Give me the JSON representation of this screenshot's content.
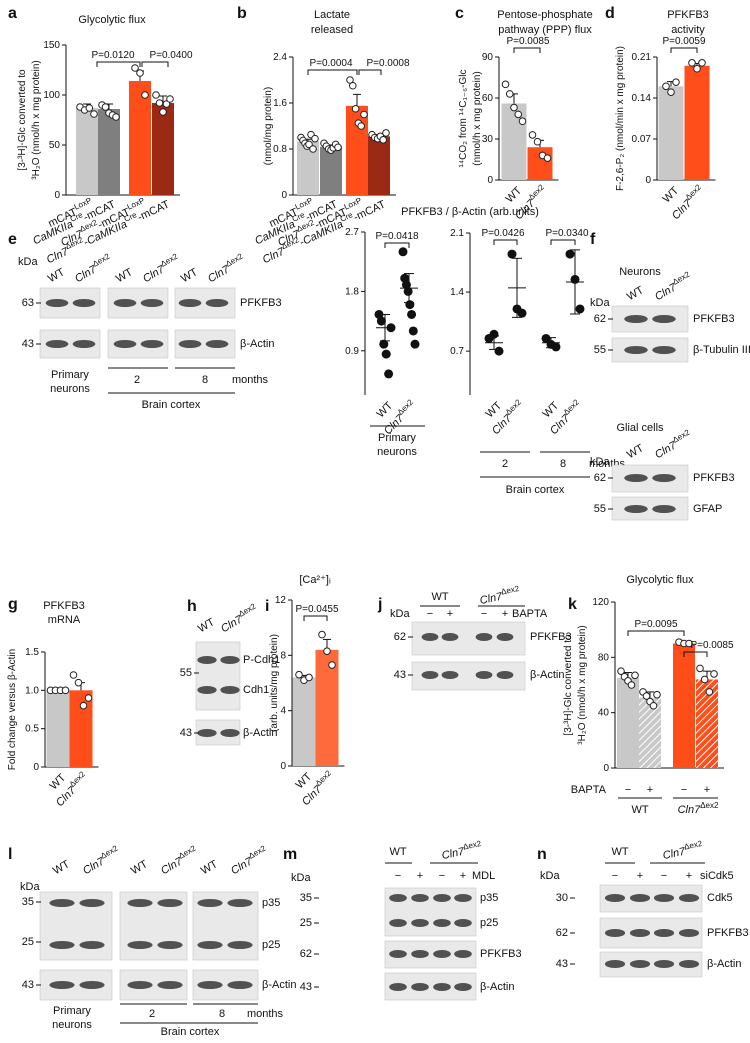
{
  "chart_data": [
    {
      "panel": "a",
      "type": "bar",
      "title": [
        "Glycolytic flux"
      ],
      "ylabel": [
        "[3-³H]-Glc converted to",
        "³H₂O (nmol/h x mg protein)"
      ],
      "categories": [
        "mCATLoxP",
        "CaMKIIaCre-mCAT",
        "Cln7Δex2-mCATLoxP",
        "Cln7Δex2-CaMKIIaCre-mCAT"
      ],
      "colors": [
        "#c8c8c8",
        "#7f7f7f",
        "#ff4e1a",
        "#9b2a14"
      ],
      "values": [
        87,
        86,
        114,
        92
      ],
      "errors": [
        4,
        5,
        10,
        7
      ],
      "points": [
        [
          88,
          85,
          87,
          81
        ],
        [
          90,
          88,
          82,
          80,
          78
        ],
        [
          127,
          122,
          100
        ],
        [
          100,
          92,
          83,
          91,
          96
        ]
      ],
      "ylim": [
        0,
        150
      ],
      "yticks": [
        0,
        50,
        100,
        150
      ],
      "annotations": [
        "P=0.0120",
        "P=0.0400"
      ]
    },
    {
      "panel": "b",
      "type": "bar",
      "title": [
        "Lactate",
        "released"
      ],
      "ylabel": [
        "(nmol/mg protein)"
      ],
      "categories": [
        "mCATLoxP",
        "CaMKIIaCre-mCAT",
        "Cln7Δex2-mCATLoxP",
        "Cln7Δex2-CaMKIIaCre-mCAT"
      ],
      "colors": [
        "#c8c8c8",
        "#7f7f7f",
        "#ff4e1a",
        "#9b2a14"
      ],
      "values": [
        0.93,
        0.84,
        1.55,
        1.02
      ],
      "errors": [
        0.04,
        0.03,
        0.2,
        0.03
      ],
      "points": [
        [
          1.0,
          0.95,
          0.9,
          0.85,
          0.88,
          1.05,
          0.8,
          0.98
        ],
        [
          0.9,
          0.85,
          0.8,
          0.78,
          0.82,
          0.88,
          0.83
        ],
        [
          2.0,
          1.9,
          1.5,
          1.25,
          1.2,
          1.4
        ],
        [
          1.05,
          1.0,
          0.98,
          1.02,
          0.96,
          1.08
        ]
      ],
      "ylim": [
        0,
        2.4
      ],
      "yticks": [
        0,
        0.8,
        1.6,
        2.4
      ],
      "annotations": [
        "P=0.0004",
        "P=0.0008"
      ]
    },
    {
      "panel": "c",
      "type": "bar",
      "title": [
        "Pentose-phosphate",
        "pathway (PPP) flux"
      ],
      "ylabel": [
        "¹⁴CO₂ from ¹⁴C₁₋₆-Glc",
        "(nmol/h x mg protein)"
      ],
      "categories": [
        "WT",
        "Cln7Δex2"
      ],
      "colors": [
        "#c8c8c8",
        "#ff4e1a"
      ],
      "values": [
        56,
        24
      ],
      "errors": [
        7,
        5
      ],
      "points": [
        [
          70,
          63,
          53,
          48,
          43
        ],
        [
          33,
          28,
          18,
          16
        ]
      ],
      "ylim": [
        0,
        90
      ],
      "yticks": [
        0,
        30,
        60,
        90
      ],
      "annotations": [
        "P=0.0085"
      ]
    },
    {
      "panel": "d",
      "type": "bar",
      "title": [
        "PFKFB3",
        "activity"
      ],
      "ylabel": [
        "F-2,6-P₂ (nmol/min x mg protein)"
      ],
      "categories": [
        "WT",
        "Cln7Δex2"
      ],
      "colors": [
        "#c8c8c8",
        "#ff4e1a"
      ],
      "values": [
        0.16,
        0.195
      ],
      "errors": [
        0.008,
        0.004
      ],
      "points": [
        [
          0.16,
          0.15,
          0.167
        ],
        [
          0.2,
          0.19,
          0.2
        ]
      ],
      "ylim": [
        0,
        0.21
      ],
      "yticks": [
        0,
        0.07,
        0.14,
        0.21
      ],
      "annotations": [
        "P=0.0059"
      ]
    },
    {
      "type": "scatter",
      "title": [
        "PFKFB3 / β-Actin (arb.units)"
      ],
      "categories": [
        "WT",
        "Cln7Δex2"
      ],
      "points": [
        [
          1.45,
          1.35,
          1.0,
          0.85,
          0.55,
          1.25
        ],
        [
          2.4,
          2.0,
          1.9,
          1.8,
          1.6,
          1.45,
          1.2,
          1.0
        ]
      ],
      "means": [
        1.25,
        1.85
      ],
      "errors": [
        0.2,
        0.22
      ],
      "ylim": [
        0.23,
        2.7
      ],
      "yticks": [
        0.9,
        1.8,
        2.7
      ],
      "annotations": [
        "P=0.0418"
      ],
      "footer": [
        "Primary",
        "neurons"
      ]
    },
    {
      "type": "scatter",
      "categories": [
        "WT",
        "Cln7Δex2",
        "WT",
        "Cln7Δex2"
      ],
      "points": [
        [
          0.85,
          0.9,
          0.7
        ],
        [
          1.85,
          1.2,
          1.15
        ],
        [
          0.85,
          0.78,
          0.75
        ],
        [
          1.85,
          1.55,
          1.2
        ]
      ],
      "means": [
        0.8,
        1.45,
        0.8,
        1.52
      ],
      "errors": [
        0.08,
        0.35,
        0.06,
        0.38
      ],
      "ylim": [
        0.18,
        2.1
      ],
      "yticks": [
        0.7,
        1.4,
        2.1
      ],
      "annotations": [
        "P=0.0426",
        "P=0.0340"
      ],
      "footer": [
        "2",
        "8",
        "months",
        "Brain cortex"
      ]
    },
    {
      "panel": "g",
      "type": "bar",
      "title": [
        "PFKFB3",
        "mRNA"
      ],
      "ylabel": [
        "Fold change versus β-Actin"
      ],
      "categories": [
        "WT",
        "Cln7Δex2"
      ],
      "colors": [
        "#c8c8c8",
        "#ff4e1a"
      ],
      "values": [
        1,
        1
      ],
      "errors": [
        0.01,
        0.1
      ],
      "points": [
        [
          1,
          1,
          1,
          1
        ],
        [
          1.2,
          1.1,
          0.8,
          0.9
        ]
      ],
      "ylim": [
        0,
        1.5
      ],
      "yticks": [
        0,
        0.5,
        {
          "value": 1,
          "label": "1.0"
        },
        1.5
      ],
      "annotations": []
    },
    {
      "panel": "i",
      "type": "bar",
      "title": [
        "[Ca²⁺]ᵢ"
      ],
      "ylabel": [
        "(arb. units/mg protein)"
      ],
      "categories": [
        "WT",
        "Cln7Δex2"
      ],
      "colors": [
        "#c8c8c8",
        "#ff6a3d"
      ],
      "values": [
        6.4,
        8.4
      ],
      "errors": [
        0.15,
        0.75
      ],
      "points": [
        [
          6.6,
          6.2,
          6.4
        ],
        [
          9.5,
          8.3,
          7.3
        ]
      ],
      "ylim": [
        0,
        12
      ],
      "yticks": [
        0,
        4,
        8,
        12
      ],
      "annotations": [
        "P=0.0455"
      ]
    },
    {
      "panel": "k",
      "type": "bar",
      "title": [
        "Glycolytic flux"
      ],
      "ylabel": [
        "[3-³H]-Glc converted to",
        "³H₂O (nmol/h x mg protein)"
      ],
      "treatment": "BAPTA",
      "signs": [
        "−",
        "+",
        "−",
        "+"
      ],
      "groups": [
        "WT",
        "Cln7Δex2"
      ],
      "colors": [
        "#c8c8c8",
        "#c8c8c8",
        "#ff4e1a",
        "#ff4e1a"
      ],
      "hatched": [
        false,
        true,
        false,
        true
      ],
      "values": [
        65,
        51,
        90,
        64
      ],
      "errors": [
        4,
        4,
        1,
        6
      ],
      "points": [
        [
          70,
          66,
          63,
          60,
          67
        ],
        [
          55,
          52,
          48,
          45,
          53
        ],
        [
          91,
          90,
          90
        ],
        [
          72,
          64,
          55,
          68
        ]
      ],
      "ylim": [
        0,
        120
      ],
      "yticks": [
        0,
        40,
        80,
        120
      ],
      "annotations": [
        "P=0.0095",
        "P=0.0085"
      ]
    }
  ],
  "blots": [
    {
      "panel": "e",
      "kda": "kDa",
      "lanes": [
        "WT",
        "Cln7Δex2",
        "WT",
        "Cln7Δex2",
        "WT",
        "Cln7Δex2"
      ],
      "strips": [
        {
          "markers": [
            "63"
          ],
          "labels": [
            "PFKFB3"
          ]
        },
        {
          "markers": [
            "43"
          ],
          "labels": [
            "β-Actin"
          ]
        }
      ],
      "footer": [
        "Primary",
        "neurons",
        "2",
        "8",
        "months",
        "Brain cortex"
      ]
    },
    {
      "panel": "f",
      "title": "Neurons",
      "kda": "kDa",
      "lanes": [
        "WT",
        "Cln7Δex2"
      ],
      "strips": [
        {
          "markers": [
            "62"
          ],
          "labels": [
            "PFKFB3"
          ]
        },
        {
          "markers": [
            "55"
          ],
          "labels": [
            "β-Tubulin III"
          ]
        }
      ]
    },
    {
      "title": "Glial cells",
      "kda": "kDa",
      "lanes": [
        "WT",
        "Cln7Δex2"
      ],
      "strips": [
        {
          "markers": [
            "62"
          ],
          "labels": [
            "PFKFB3"
          ]
        },
        {
          "markers": [
            "55"
          ],
          "labels": [
            "GFAP"
          ]
        }
      ]
    },
    {
      "panel": "h",
      "lanes": [
        "WT",
        "Cln7Δex2"
      ],
      "strips": [
        {
          "markers": [
            "55"
          ],
          "labels": [
            "P-Cdh1",
            "Cdh1"
          ]
        },
        {
          "markers": [
            "43"
          ],
          "labels": [
            "β-Actin"
          ]
        }
      ]
    },
    {
      "panel": "j",
      "kda": "kDa",
      "groups": [
        "WT",
        "Cln7Δex2"
      ],
      "signs": [
        "−",
        "+",
        "−",
        "+"
      ],
      "treatment": "BAPTA",
      "strips": [
        {
          "markers": [
            "62"
          ],
          "labels": [
            "PFKFB3"
          ]
        },
        {
          "markers": [
            "43"
          ],
          "labels": [
            "β-Actin"
          ]
        }
      ]
    },
    {
      "panel": "l",
      "kda": "kDa",
      "lanes": [
        "WT",
        "Cln7Δex2",
        "WT",
        "Cln7Δex2",
        "WT",
        "Cln7Δex2"
      ],
      "strips": [
        {
          "markers": [
            "35",
            "25"
          ],
          "labels": [
            "p35",
            "p25"
          ]
        },
        {
          "markers": [
            "43"
          ],
          "labels": [
            "β-Actin"
          ]
        }
      ],
      "footer": [
        "Primary",
        "neurons",
        "2",
        "8",
        "months",
        "Brain cortex"
      ]
    },
    {
      "panel": "m",
      "kda": "kDa",
      "groups": [
        "WT",
        "Cln7Δex2"
      ],
      "signs": [
        "−",
        "+",
        "−",
        "+"
      ],
      "treatment": "MDL",
      "strips": [
        {
          "markers": [
            "35",
            "25"
          ],
          "labels": [
            "p35",
            "p25"
          ]
        },
        {
          "markers": [
            "62"
          ],
          "labels": [
            "PFKFB3"
          ]
        },
        {
          "markers": [
            "43"
          ],
          "labels": [
            "β-Actin"
          ]
        }
      ]
    },
    {
      "panel": "n",
      "kda": "kDa",
      "groups": [
        "WT",
        "Cln7Δex2"
      ],
      "signs": [
        "−",
        "+",
        "−",
        "+"
      ],
      "treatment": "siCdk5",
      "strips": [
        {
          "markers": [
            "30"
          ],
          "labels": [
            "Cdk5"
          ]
        },
        {
          "markers": [
            "62"
          ],
          "labels": [
            "PFKFB3"
          ]
        },
        {
          "markers": [
            "43"
          ],
          "labels": [
            "β-Actin"
          ]
        }
      ]
    }
  ]
}
